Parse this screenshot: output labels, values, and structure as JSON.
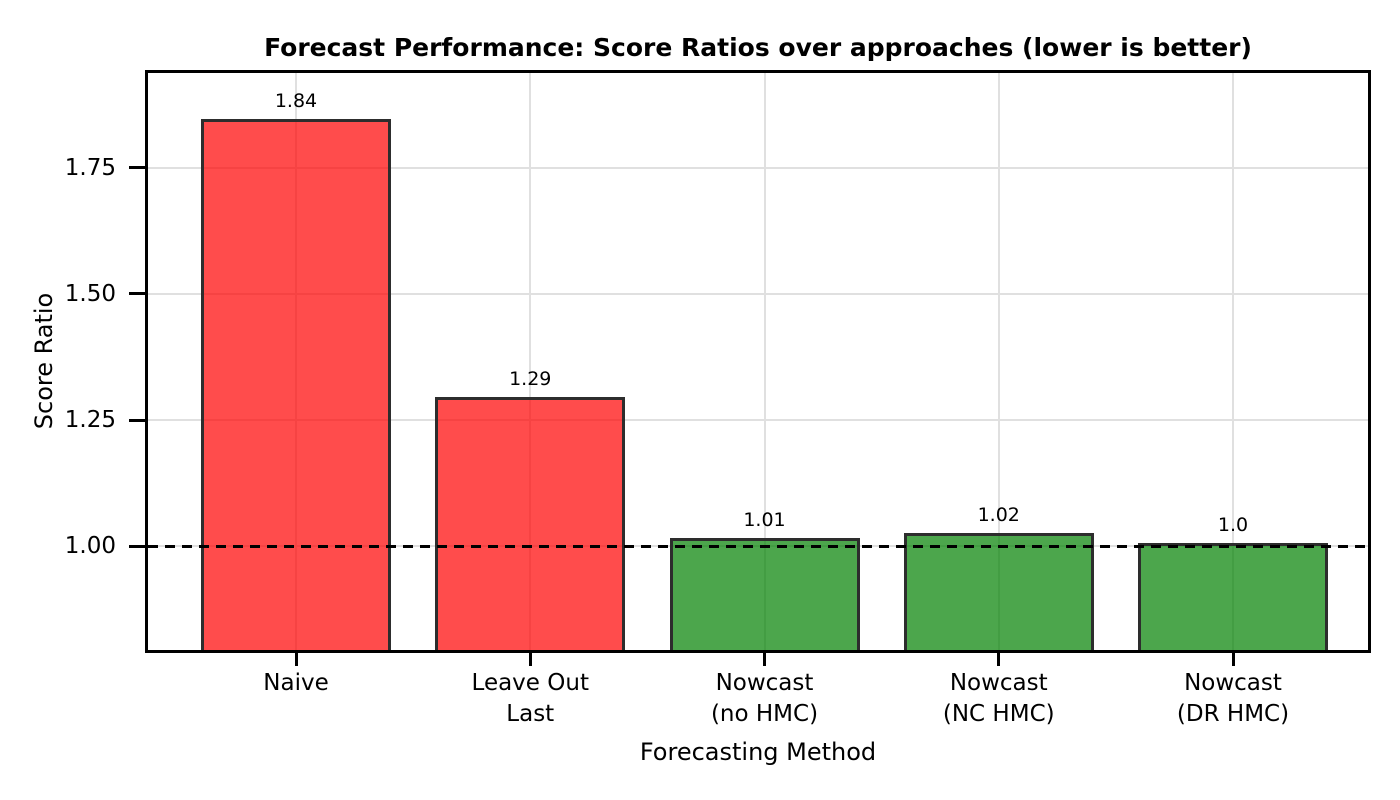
{
  "chart_data": {
    "type": "bar",
    "title": "Forecast Performance: Score Ratios over approaches (lower is better)",
    "xlabel": "Forecasting Method",
    "ylabel": "Score Ratio",
    "categories": [
      [
        "Naive"
      ],
      [
        "Leave Out",
        "Last"
      ],
      [
        "Nowcast",
        "(no HMC)"
      ],
      [
        "Nowcast",
        "(NC HMC)"
      ],
      [
        "Nowcast",
        "(DR HMC)"
      ]
    ],
    "values": [
      1.84,
      1.29,
      1.01,
      1.02,
      1.0
    ],
    "value_labels": [
      "1.84",
      "1.29",
      "1.01",
      "1.02",
      "1.0"
    ],
    "bar_colors": [
      "rgba(255,0,0,0.7)",
      "rgba(255,0,0,0.7)",
      "rgba(0,128,0,0.7)",
      "rgba(0,128,0,0.7)",
      "rgba(0,128,0,0.7)"
    ],
    "edge_color": "#2d2d2d",
    "grid_color": "#e0e0e0",
    "grid": true,
    "legend": null,
    "reference_line": {
      "value": 1.0,
      "style": "dashed",
      "color": "#000000"
    },
    "yticks": [
      {
        "value": 1.0,
        "label": "1.00"
      },
      {
        "value": 1.25,
        "label": "1.25"
      },
      {
        "value": 1.5,
        "label": "1.50"
      },
      {
        "value": 1.75,
        "label": "1.75"
      }
    ],
    "ylim": [
      0.794,
      1.938
    ]
  }
}
